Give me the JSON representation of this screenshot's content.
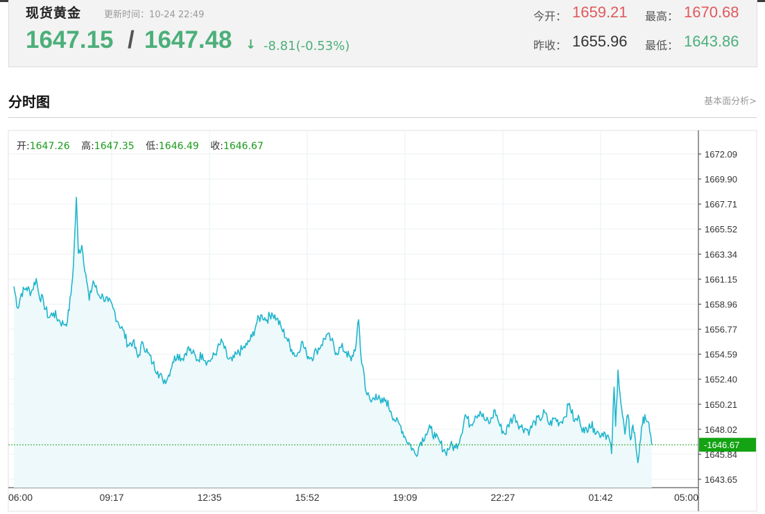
{
  "quote": {
    "name": "现货黄金",
    "update_time": "更新时间：10-24 22:49",
    "bid": "1647.15",
    "separator": "/",
    "ask": "1647.48",
    "arrow": "↓",
    "change": "-8.81(-0.53%)",
    "open_label": "今开：",
    "open_value": "1659.21",
    "high_label": "最高：",
    "high_value": "1670.68",
    "prev_close_label": "昨收：",
    "prev_close_value": "1655.96",
    "low_label": "最低：",
    "low_value": "1643.86"
  },
  "section": {
    "title": "分时图",
    "link": "基本面分析>"
  },
  "tooltip": {
    "open_label": "开:",
    "open_value": "1647.26",
    "high_label": "高:",
    "high_value": "1647.35",
    "low_label": "低:",
    "low_value": "1646.49",
    "close_label": "收:",
    "close_value": "1646.67"
  },
  "chart_data": {
    "type": "area",
    "x_tick_labels": [
      "06:00",
      "09:17",
      "12:35",
      "15:52",
      "19:09",
      "22:27",
      "01:42",
      "05:00"
    ],
    "y_tick_labels": [
      "1672.09",
      "1669.90",
      "1667.71",
      "1665.52",
      "1663.34",
      "1661.15",
      "1658.96",
      "1656.77",
      "1654.59",
      "1652.40",
      "1650.21",
      "1648.02",
      "1645.84",
      "1643.65"
    ],
    "ylim": [
      1643.65,
      1672.09
    ],
    "current_price_label": "1646.67",
    "current_price": 1646.67,
    "x_hours_range": [
      0,
      1380
    ],
    "points": [
      [
        0,
        1660.5
      ],
      [
        8,
        1658.6
      ],
      [
        15,
        1659.9
      ],
      [
        25,
        1660.4
      ],
      [
        35,
        1660.0
      ],
      [
        45,
        1661.2
      ],
      [
        50,
        1659.9
      ],
      [
        60,
        1659.1
      ],
      [
        70,
        1657.8
      ],
      [
        80,
        1658.2
      ],
      [
        90,
        1657.6
      ],
      [
        100,
        1657.2
      ],
      [
        108,
        1657.5
      ],
      [
        115,
        1659.8
      ],
      [
        120,
        1662.3
      ],
      [
        126,
        1668.3
      ],
      [
        130,
        1663.4
      ],
      [
        137,
        1664.1
      ],
      [
        145,
        1661.6
      ],
      [
        152,
        1659.3
      ],
      [
        160,
        1661.0
      ],
      [
        170,
        1659.8
      ],
      [
        180,
        1659.6
      ],
      [
        190,
        1659.2
      ],
      [
        200,
        1658.6
      ],
      [
        210,
        1657.4
      ],
      [
        220,
        1656.7
      ],
      [
        230,
        1655.4
      ],
      [
        240,
        1655.7
      ],
      [
        250,
        1654.3
      ],
      [
        260,
        1655.6
      ],
      [
        270,
        1654.7
      ],
      [
        280,
        1653.8
      ],
      [
        290,
        1653.1
      ],
      [
        300,
        1652.3
      ],
      [
        310,
        1652.5
      ],
      [
        320,
        1653.9
      ],
      [
        330,
        1654.6
      ],
      [
        340,
        1654.2
      ],
      [
        350,
        1655.1
      ],
      [
        360,
        1654.7
      ],
      [
        370,
        1654.1
      ],
      [
        380,
        1654.6
      ],
      [
        390,
        1653.9
      ],
      [
        400,
        1654.2
      ],
      [
        410,
        1655.0
      ],
      [
        420,
        1655.7
      ],
      [
        430,
        1654.3
      ],
      [
        440,
        1654.0
      ],
      [
        450,
        1654.6
      ],
      [
        460,
        1655.0
      ],
      [
        470,
        1655.4
      ],
      [
        480,
        1656.1
      ],
      [
        490,
        1657.4
      ],
      [
        500,
        1658.0
      ],
      [
        510,
        1657.6
      ],
      [
        520,
        1658.2
      ],
      [
        530,
        1657.7
      ],
      [
        540,
        1656.8
      ],
      [
        550,
        1656.0
      ],
      [
        560,
        1655.0
      ],
      [
        570,
        1654.4
      ],
      [
        580,
        1655.7
      ],
      [
        590,
        1654.6
      ],
      [
        600,
        1654.3
      ],
      [
        610,
        1654.9
      ],
      [
        620,
        1655.4
      ],
      [
        630,
        1656.3
      ],
      [
        640,
        1655.8
      ],
      [
        650,
        1654.7
      ],
      [
        660,
        1655.2
      ],
      [
        670,
        1654.8
      ],
      [
        680,
        1654.0
      ],
      [
        690,
        1655.5
      ],
      [
        695,
        1657.6
      ],
      [
        700,
        1654.2
      ],
      [
        705,
        1653.2
      ],
      [
        710,
        1651.3
      ],
      [
        720,
        1650.4
      ],
      [
        730,
        1651.1
      ],
      [
        740,
        1650.3
      ],
      [
        750,
        1650.6
      ],
      [
        760,
        1649.6
      ],
      [
        770,
        1648.7
      ],
      [
        780,
        1648.3
      ],
      [
        790,
        1647.2
      ],
      [
        800,
        1646.6
      ],
      [
        810,
        1645.8
      ],
      [
        820,
        1646.9
      ],
      [
        830,
        1647.6
      ],
      [
        840,
        1648.1
      ],
      [
        850,
        1647.3
      ],
      [
        860,
        1646.8
      ],
      [
        870,
        1646.0
      ],
      [
        880,
        1646.6
      ],
      [
        890,
        1646.4
      ],
      [
        900,
        1647.3
      ],
      [
        910,
        1649.3
      ],
      [
        920,
        1648.4
      ],
      [
        930,
        1649.2
      ],
      [
        940,
        1649.6
      ],
      [
        950,
        1648.8
      ],
      [
        960,
        1648.6
      ],
      [
        970,
        1649.7
      ],
      [
        980,
        1648.3
      ],
      [
        990,
        1647.6
      ],
      [
        1000,
        1648.7
      ],
      [
        1010,
        1649.2
      ],
      [
        1020,
        1648.3
      ],
      [
        1030,
        1648.1
      ],
      [
        1040,
        1647.9
      ],
      [
        1050,
        1648.7
      ],
      [
        1060,
        1648.9
      ],
      [
        1070,
        1649.5
      ],
      [
        1080,
        1648.4
      ],
      [
        1090,
        1649.0
      ],
      [
        1100,
        1648.6
      ],
      [
        1110,
        1649.1
      ],
      [
        1120,
        1650.3
      ],
      [
        1130,
        1648.7
      ],
      [
        1140,
        1649.0
      ],
      [
        1150,
        1647.7
      ],
      [
        1160,
        1648.5
      ],
      [
        1170,
        1648.1
      ],
      [
        1180,
        1647.6
      ],
      [
        1190,
        1647.8
      ],
      [
        1200,
        1647.2
      ],
      [
        1205,
        1645.9
      ],
      [
        1210,
        1651.7
      ],
      [
        1213,
        1648.3
      ],
      [
        1218,
        1653.2
      ],
      [
        1222,
        1651.1
      ],
      [
        1227,
        1649.2
      ],
      [
        1232,
        1647.6
      ],
      [
        1238,
        1649.3
      ],
      [
        1243,
        1647.1
      ],
      [
        1248,
        1648.4
      ],
      [
        1253,
        1647.0
      ],
      [
        1258,
        1645.1
      ],
      [
        1262,
        1646.8
      ],
      [
        1267,
        1648.4
      ],
      [
        1272,
        1649.3
      ],
      [
        1277,
        1648.7
      ],
      [
        1282,
        1647.8
      ],
      [
        1286,
        1646.67
      ]
    ]
  }
}
